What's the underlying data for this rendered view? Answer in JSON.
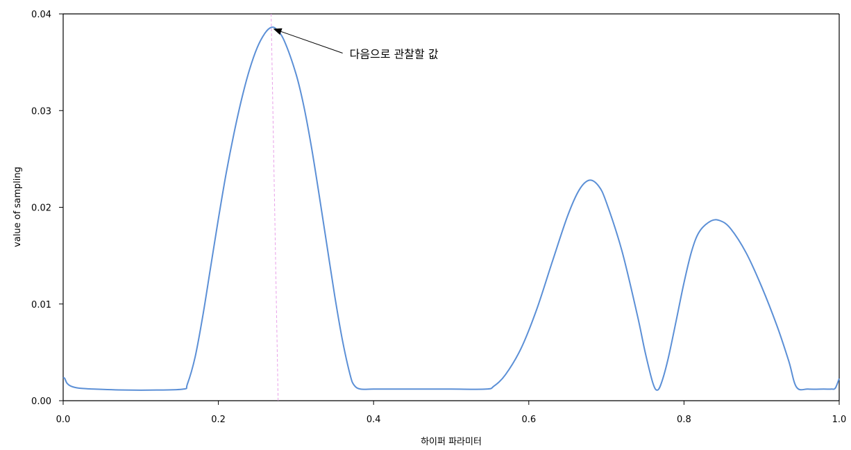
{
  "chart_data": {
    "type": "line",
    "xlabel": "하이퍼 파라미터",
    "ylabel": "value of sampling",
    "xlim": [
      0.0,
      1.0
    ],
    "ylim": [
      0.0,
      0.04
    ],
    "x_ticks": [
      0.0,
      0.2,
      0.4,
      0.6,
      0.8,
      1.0
    ],
    "x_tick_labels": [
      "0.0",
      "0.2",
      "0.4",
      "0.6",
      "0.8",
      "1.0"
    ],
    "y_ticks": [
      0.0,
      0.01,
      0.02,
      0.03,
      0.04
    ],
    "y_tick_labels": [
      "0.00",
      "0.01",
      "0.02",
      "0.03",
      "0.04"
    ],
    "grid": false,
    "line_color": "#5b8fd6",
    "marker_line_color": "#e8a0e8",
    "series": [
      {
        "x": [
          0.0,
          0.002,
          0.005,
          0.01,
          0.02,
          0.04,
          0.08,
          0.12,
          0.155,
          0.16,
          0.17,
          0.18,
          0.19,
          0.2,
          0.21,
          0.22,
          0.23,
          0.24,
          0.25,
          0.26,
          0.268,
          0.275,
          0.285,
          0.3,
          0.31,
          0.32,
          0.33,
          0.34,
          0.35,
          0.36,
          0.37,
          0.375,
          0.383,
          0.4,
          0.45,
          0.5,
          0.545,
          0.555,
          0.57,
          0.59,
          0.61,
          0.63,
          0.65,
          0.665,
          0.678,
          0.69,
          0.7,
          0.72,
          0.74,
          0.75,
          0.76,
          0.766,
          0.772,
          0.78,
          0.79,
          0.8,
          0.81,
          0.82,
          0.835,
          0.847,
          0.86,
          0.88,
          0.9,
          0.92,
          0.935,
          0.945,
          0.96,
          0.98,
          0.99,
          0.995,
          1.0
        ],
        "y": [
          0.0024,
          0.0023,
          0.0018,
          0.0015,
          0.0013,
          0.0012,
          0.0011,
          0.0011,
          0.0012,
          0.0017,
          0.0045,
          0.0088,
          0.0138,
          0.0188,
          0.0235,
          0.0276,
          0.0312,
          0.0342,
          0.0365,
          0.038,
          0.0386,
          0.0384,
          0.0372,
          0.0338,
          0.0305,
          0.0262,
          0.0212,
          0.016,
          0.0108,
          0.0062,
          0.0026,
          0.0016,
          0.0012,
          0.0012,
          0.0012,
          0.0012,
          0.0012,
          0.0015,
          0.0027,
          0.0054,
          0.0094,
          0.0143,
          0.0191,
          0.0218,
          0.0228,
          0.0222,
          0.0205,
          0.0155,
          0.0088,
          0.005,
          0.0018,
          0.0011,
          0.0021,
          0.0045,
          0.0083,
          0.0122,
          0.0155,
          0.0175,
          0.0186,
          0.0186,
          0.0178,
          0.0153,
          0.0118,
          0.0077,
          0.0041,
          0.0014,
          0.0012,
          0.0012,
          0.0012,
          0.0013,
          0.0023
        ]
      }
    ],
    "marker_line": {
      "x_top": 0.268,
      "y_top": 0.04,
      "x_bottom": 0.277,
      "y_bottom": 0.0
    },
    "annotation": {
      "text": "다음으로 관찰할 값",
      "x": 0.268,
      "y": 0.0386
    }
  }
}
